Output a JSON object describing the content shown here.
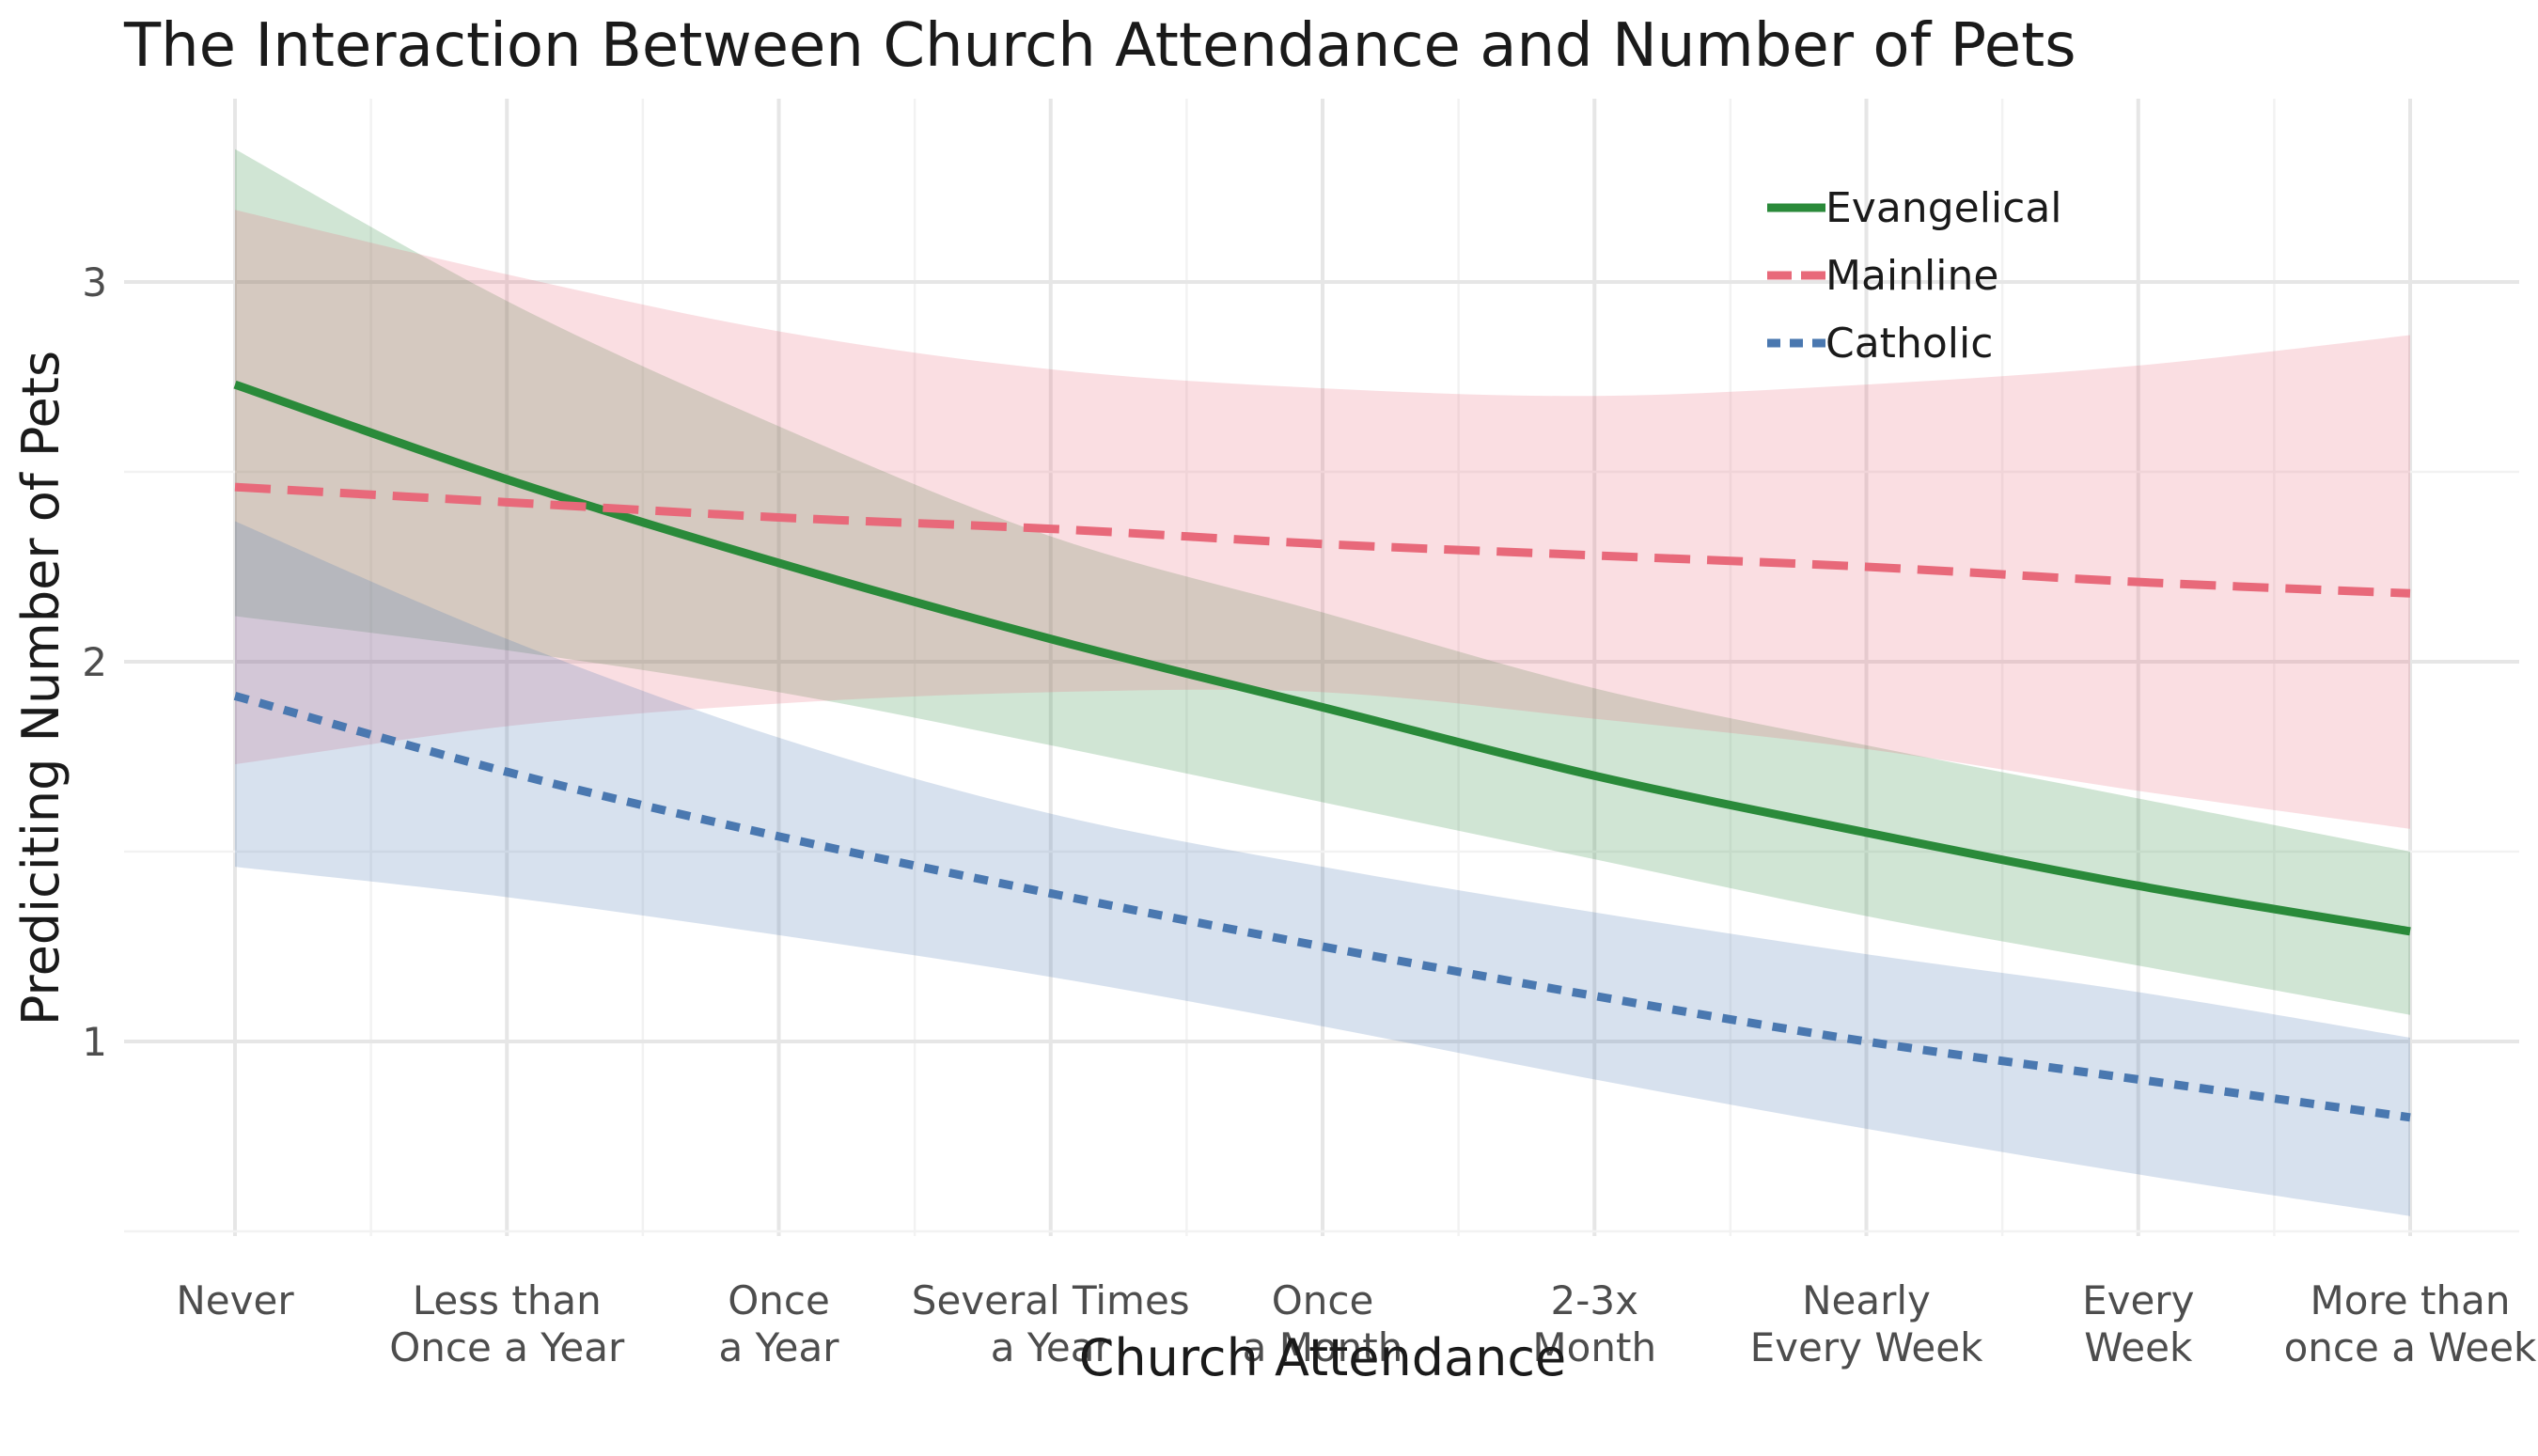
{
  "chart_data": {
    "type": "line",
    "title": "The Interaction Between Church Attendance and Number of Pets",
    "xlabel": "Church Attendance",
    "ylabel": "Prediciting Number of Pets",
    "categories": [
      [
        "Never"
      ],
      [
        "Less than",
        "Once a Year"
      ],
      [
        "Once",
        "a Year"
      ],
      [
        "Several Times",
        "a Year"
      ],
      [
        "Once",
        "a Month"
      ],
      [
        "2-3x",
        "Month"
      ],
      [
        "Nearly",
        "Every Week"
      ],
      [
        "Every",
        "Week"
      ],
      [
        "More than",
        "once a Week"
      ]
    ],
    "yticks": [
      1,
      2,
      3
    ],
    "ylim": [
      0.5,
      3.5
    ],
    "grid": true,
    "legend_position": "top-right",
    "series": [
      {
        "name": "Evangelical",
        "color": "#2a8a3a",
        "line_style": "solid",
        "values": [
          2.73,
          2.48,
          2.26,
          2.06,
          1.88,
          1.7,
          1.55,
          1.41,
          1.29
        ],
        "ci_lower": [
          2.12,
          2.03,
          1.92,
          1.78,
          1.63,
          1.48,
          1.33,
          1.2,
          1.07
        ],
        "ci_upper": [
          3.35,
          2.95,
          2.62,
          2.33,
          2.13,
          1.93,
          1.78,
          1.64,
          1.5
        ]
      },
      {
        "name": "Mainline",
        "color": "#e8697a",
        "line_style": "dashed",
        "values": [
          2.46,
          2.42,
          2.38,
          2.35,
          2.31,
          2.28,
          2.25,
          2.21,
          2.18
        ],
        "ci_lower": [
          1.73,
          1.83,
          1.89,
          1.92,
          1.92,
          1.85,
          1.77,
          1.66,
          1.56
        ],
        "ci_upper": [
          3.19,
          3.02,
          2.87,
          2.77,
          2.72,
          2.7,
          2.73,
          2.78,
          2.86
        ]
      },
      {
        "name": "Catholic",
        "color": "#4a78b0",
        "line_style": "dotted",
        "values": [
          1.91,
          1.71,
          1.54,
          1.39,
          1.25,
          1.12,
          1.0,
          0.9,
          0.8
        ],
        "ci_lower": [
          1.46,
          1.38,
          1.28,
          1.17,
          1.04,
          0.9,
          0.77,
          0.65,
          0.54
        ],
        "ci_upper": [
          2.37,
          2.06,
          1.8,
          1.6,
          1.46,
          1.34,
          1.23,
          1.13,
          1.01
        ]
      }
    ]
  }
}
